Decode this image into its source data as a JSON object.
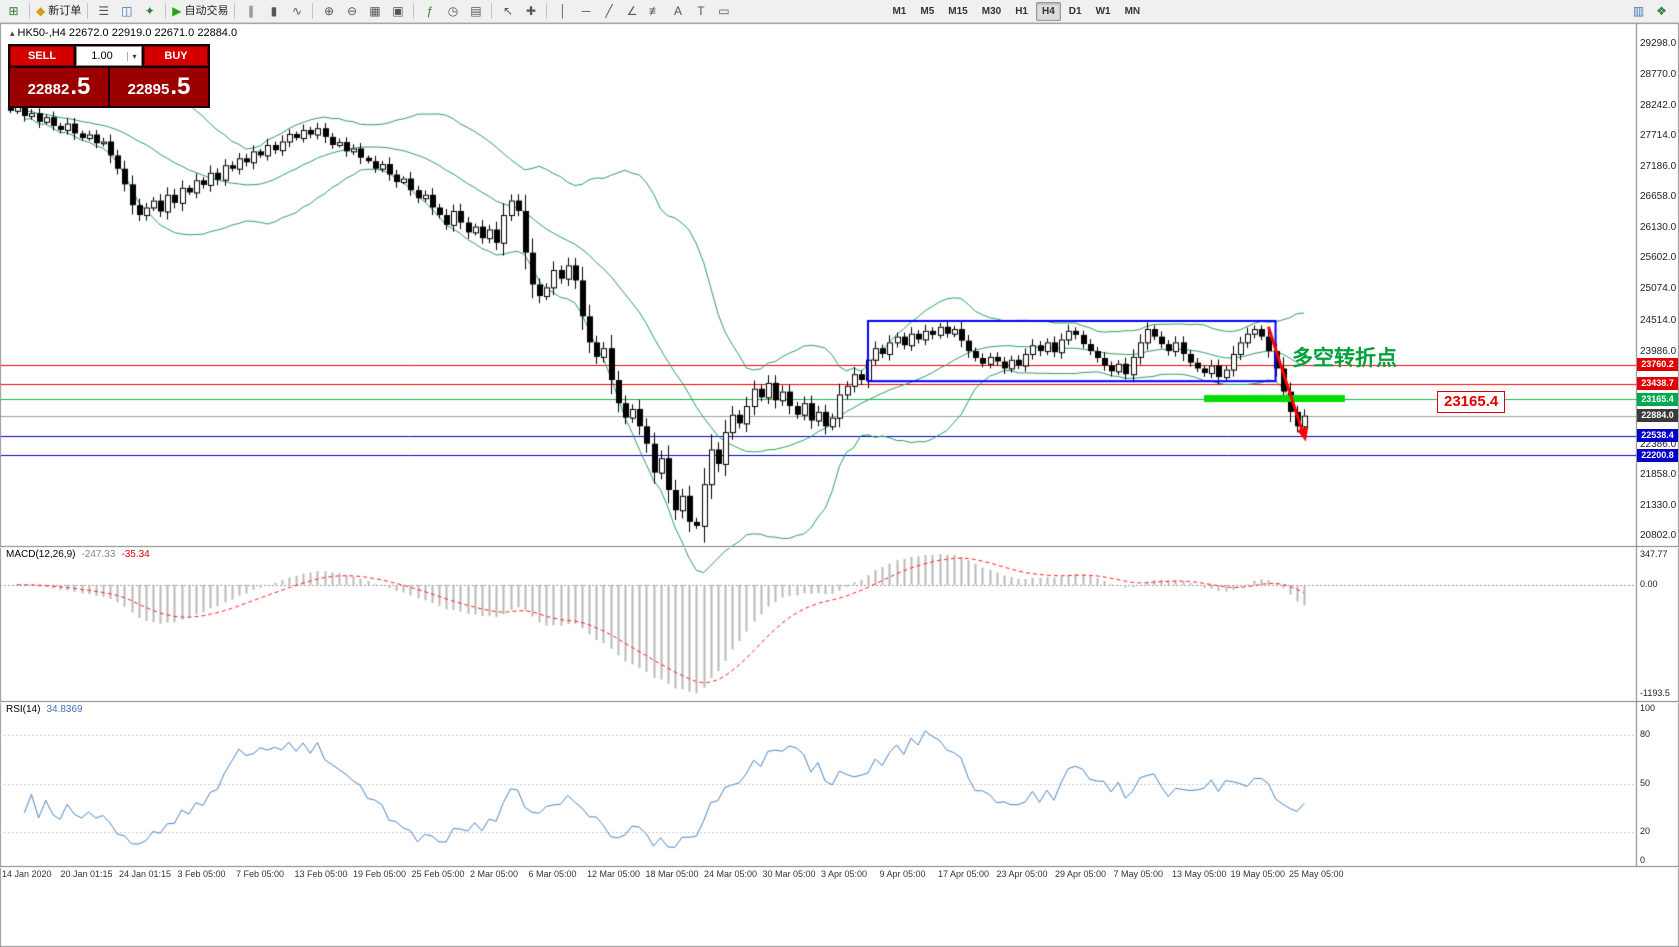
{
  "toolbar": {
    "groups": [
      [
        {
          "name": "new-chart-icon",
          "glyph": "⊞",
          "color": "#2e7d32"
        }
      ],
      [
        {
          "name": "new-order-button",
          "glyph": "◆",
          "color": "#d4a017",
          "label": "新订单"
        }
      ],
      [
        {
          "name": "market-watch-icon",
          "glyph": "☰",
          "color": "#555"
        },
        {
          "name": "data-window-icon",
          "glyph": "◫",
          "color": "#3f76b8"
        },
        {
          "name": "navigator-icon",
          "glyph": "✦",
          "color": "#2e7d32"
        }
      ],
      [
        {
          "name": "autotrading-button",
          "glyph": "▶",
          "color": "#1faa00",
          "label": "自动交易"
        }
      ],
      [
        {
          "name": "bar-chart-icon",
          "glyph": "∥",
          "color": "#555"
        },
        {
          "name": "candle-chart-icon",
          "glyph": "▮",
          "color": "#555"
        },
        {
          "name": "line-chart-icon",
          "glyph": "∿",
          "color": "#555"
        }
      ],
      [
        {
          "name": "zoom-in-icon",
          "glyph": "⊕",
          "color": "#555"
        },
        {
          "name": "zoom-out-icon",
          "glyph": "⊖",
          "color": "#555"
        },
        {
          "name": "grid-icon",
          "glyph": "▦",
          "color": "#555"
        },
        {
          "name": "tile-windows-icon",
          "glyph": "▣",
          "color": "#555"
        }
      ],
      [
        {
          "name": "indicators-icon",
          "glyph": "ƒ",
          "color": "#2e7d32"
        },
        {
          "name": "period-icon",
          "glyph": "◷",
          "color": "#555"
        },
        {
          "name": "templates-icon",
          "glyph": "▤",
          "color": "#555"
        }
      ],
      [
        {
          "name": "cursor-icon",
          "glyph": "↖",
          "color": "#555"
        },
        {
          "name": "crosshair-icon",
          "glyph": "✚",
          "color": "#555"
        }
      ],
      [
        {
          "name": "vertical-line-icon",
          "glyph": "│",
          "color": "#555"
        },
        {
          "name": "horizontal-line-icon",
          "glyph": "─",
          "color": "#555"
        },
        {
          "name": "trendline-icon",
          "glyph": "╱",
          "color": "#555"
        },
        {
          "name": "channel-icon",
          "glyph": "∠",
          "color": "#555"
        },
        {
          "name": "fibonacci-icon",
          "glyph": "≢",
          "color": "#555"
        },
        {
          "name": "text-icon",
          "glyph": "A",
          "color": "#555"
        },
        {
          "name": "label-icon",
          "glyph": "T",
          "color": "#555"
        },
        {
          "name": "shapes-icon",
          "glyph": "▭",
          "color": "#555"
        }
      ]
    ],
    "timeframes": [
      "M1",
      "M5",
      "M15",
      "M30",
      "H1",
      "H4",
      "D1",
      "W1",
      "MN"
    ],
    "active_timeframe": "H4",
    "right_icons": [
      {
        "name": "chart-shift-icon",
        "glyph": "▥",
        "color": "#3f76b8"
      },
      {
        "name": "profile-icon",
        "glyph": "❖",
        "color": "#2e7d32"
      }
    ]
  },
  "chart": {
    "icon": "▴",
    "title": "HK50-,H4  22672.0 22919.0 22671.0 22884.0"
  },
  "trade_panel": {
    "sell_label": "SELL",
    "buy_label": "BUY",
    "volume": "1.00",
    "spinner": "▾",
    "bid_int": "22882",
    "bid_dec": ".5",
    "ask_int": "22895",
    "ask_dec": ".5"
  },
  "macd": {
    "name": "MACD(12,26,9)",
    "value1": "-247.33",
    "value2": "-35.34",
    "scale_max": "347.77",
    "scale_zero": "0.00",
    "scale_min": "-1193.5"
  },
  "rsi": {
    "name": "RSI(14)",
    "value": "34.8369",
    "scale": [
      "100",
      "80",
      "50",
      "20",
      "0"
    ]
  },
  "annotations": {
    "turning_point": "多空转折点",
    "callout_price": "23165.4"
  },
  "chart_data": {
    "type": "candlestick",
    "symbol": "HK50-",
    "period": "H4",
    "price_scale": {
      "top_price": 29650,
      "bottom_price": 20650
    },
    "closes": [
      28150,
      28230,
      28060,
      28110,
      27960,
      28040,
      27890,
      27820,
      27930,
      27760,
      27680,
      27740,
      27590,
      27620,
      27380,
      27150,
      26880,
      26520,
      26350,
      26480,
      26600,
      26410,
      26700,
      26560,
      26820,
      26740,
      26950,
      26870,
      27080,
      26960,
      27210,
      27150,
      27330,
      27260,
      27450,
      27380,
      27560,
      27470,
      27620,
      27750,
      27680,
      27820,
      27740,
      27850,
      27700,
      27560,
      27610,
      27450,
      27500,
      27340,
      27280,
      27150,
      27230,
      27050,
      26920,
      26980,
      26780,
      26640,
      26700,
      26480,
      26350,
      26180,
      26420,
      26220,
      26050,
      26150,
      25950,
      26100,
      25870,
      26350,
      26600,
      26420,
      25700,
      25150,
      24950,
      25100,
      25400,
      25250,
      25480,
      25220,
      24600,
      24150,
      23900,
      24050,
      23500,
      23100,
      22850,
      23000,
      22700,
      22400,
      21900,
      22150,
      21600,
      21250,
      21500,
      21050,
      20980,
      21700,
      22300,
      22050,
      22600,
      22900,
      22750,
      23050,
      23350,
      23200,
      23450,
      23150,
      23300,
      23050,
      22900,
      23100,
      22800,
      22950,
      22700,
      22850,
      23250,
      23400,
      23600,
      23500,
      23850,
      24050,
      23950,
      24150,
      24250,
      24100,
      24300,
      24200,
      24350,
      24280,
      24420,
      24300,
      24380,
      24180,
      24000,
      23880,
      23780,
      23900,
      23820,
      23700,
      23850,
      23750,
      23950,
      24100,
      24000,
      24150,
      23980,
      24200,
      24350,
      24280,
      24120,
      24000,
      23880,
      23750,
      23650,
      23780,
      23600,
      23900,
      24150,
      24380,
      24250,
      24120,
      24000,
      24150,
      23950,
      23800,
      23700,
      23620,
      23750,
      23550,
      23680,
      23950,
      24150,
      24300,
      24380,
      24250,
      24000,
      23700,
      23300,
      22950,
      22700,
      22884
    ],
    "bollinger": {
      "period": 20,
      "deviation": 2
    },
    "macd_params": {
      "fast": 12,
      "slow": 26,
      "signal": 9,
      "scale_max": 347.77,
      "scale_min": -1193.5
    },
    "rsi_params": {
      "period": 14,
      "levels": [
        100,
        80,
        50,
        20,
        0
      ]
    },
    "axis_labels": [
      {
        "text": "29298.0",
        "price": 29298
      },
      {
        "text": "28770.0",
        "price": 28770
      },
      {
        "text": "28242.0",
        "price": 28242
      },
      {
        "text": "27714.0",
        "price": 27714
      },
      {
        "text": "27186.0",
        "price": 27186
      },
      {
        "text": "26658.0",
        "price": 26658
      },
      {
        "text": "26130.0",
        "price": 26130
      },
      {
        "text": "25602.0",
        "price": 25602
      },
      {
        "text": "25074.0",
        "price": 25074
      },
      {
        "text": "24514.0",
        "price": 24514
      },
      {
        "text": "23986.0",
        "price": 23986
      },
      {
        "text": "22386.0",
        "price": 22386
      },
      {
        "text": "21858.0",
        "price": 21858
      },
      {
        "text": "21330.0",
        "price": 21330
      },
      {
        "text": "20802.0",
        "price": 20802
      }
    ],
    "price_lines": [
      {
        "price": 23760.2,
        "color": "#ff0000",
        "tag": "23760.2",
        "tag_bg": "#e00000"
      },
      {
        "price": 23438.7,
        "color": "#ff0000",
        "tag": "23438.7",
        "tag_bg": "#e00000"
      },
      {
        "price": 23165.4,
        "color": "#22b14c",
        "tag": "23165.4",
        "tag_bg": "#00a84f"
      },
      {
        "price": 22884.0,
        "color": "#a0a0a0",
        "tag": "22884.0",
        "tag_bg": "#3a3a3a"
      },
      {
        "price": 22538.4,
        "color": "#0000c8",
        "tag": "22538.4",
        "tag_bg": "#0000c8"
      },
      {
        "price": 22200.8,
        "color": "#0000c8",
        "tag": "22200.8",
        "tag_bg": "#0000c8"
      }
    ],
    "shapes": {
      "box": {
        "x1_bar": 120,
        "x2_bar": 177,
        "top_price": 24520,
        "bottom_price": 23480,
        "color": "#0000ff"
      },
      "green_bar": {
        "x1_bar": 167,
        "x2_bar": 186.7,
        "price": 23180,
        "thickness": 7,
        "color": "#00dd00"
      },
      "arrow": {
        "points": [
          [
            176,
            24420
          ],
          [
            178.5,
            23460
          ],
          [
            180.8,
            22600
          ]
        ],
        "color": "#ff0000"
      }
    },
    "colors": {
      "bollinger": "#2f9e63",
      "candle": "#000000",
      "rsi_line": "#4a86c8",
      "macd_hist": "#b8b8b8",
      "macd_signal": "#ff2020"
    },
    "time_labels": [
      "14 Jan 2020",
      "20 Jan 01:15",
      "24 Jan 01:15",
      "3 Feb 05:00",
      "7 Feb 05:00",
      "13 Feb 05:00",
      "19 Feb 05:00",
      "25 Feb 05:00",
      "2 Mar 05:00",
      "6 Mar 05:00",
      "12 Mar 05:00",
      "18 Mar 05:00",
      "24 Mar 05:00",
      "30 Mar 05:00",
      "3 Apr 05:00",
      "9 Apr 05:00",
      "17 Apr 05:00",
      "23 Apr 05:00",
      "29 Apr 05:00",
      "7 May 05:00",
      "13 May 05:00",
      "19 May 05:00",
      "25 May 05:00"
    ]
  }
}
